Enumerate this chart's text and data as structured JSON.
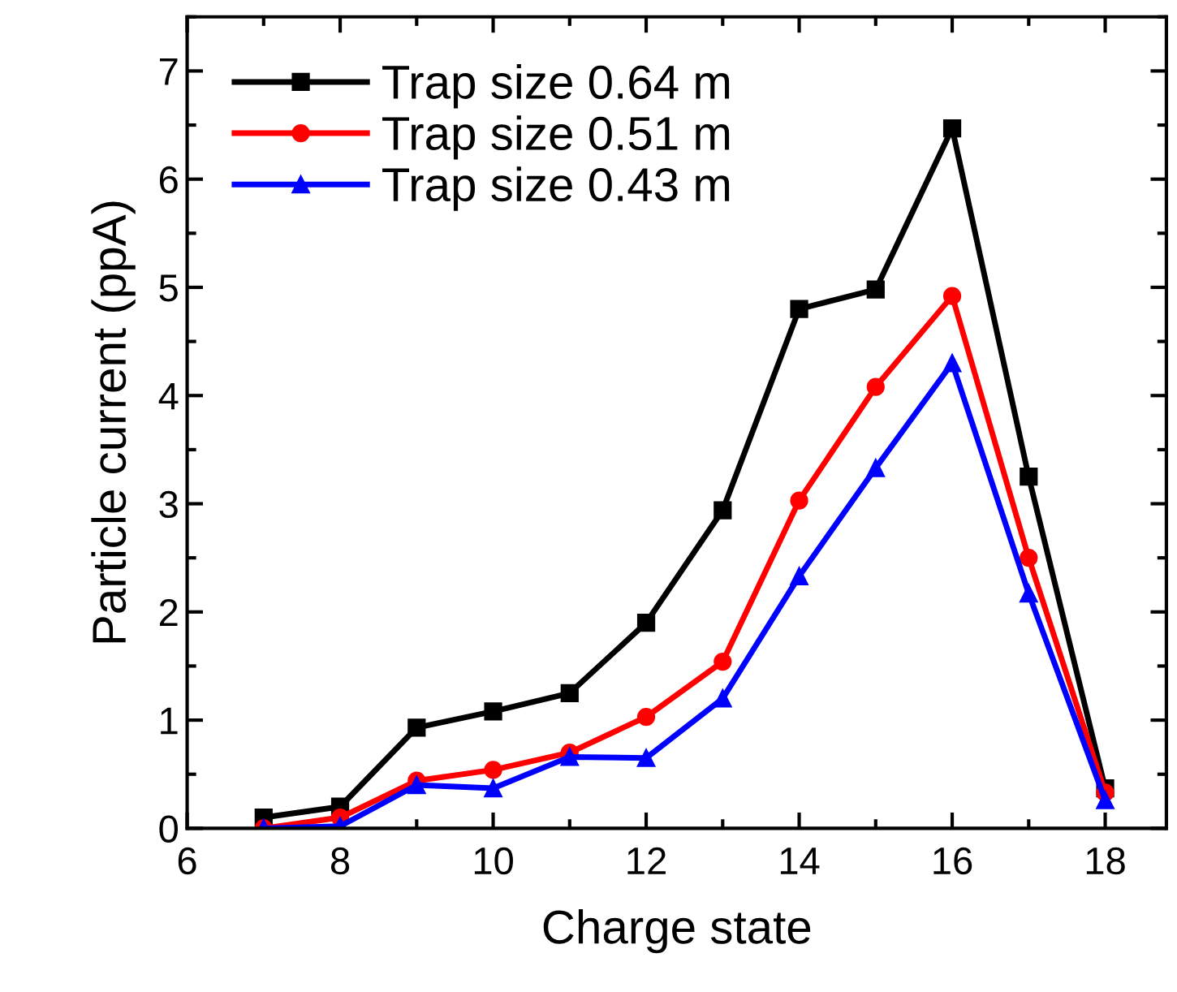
{
  "chart_data": {
    "type": "line",
    "xlabel": "Charge state",
    "ylabel": "Particle current (ppA)",
    "x": [
      7,
      8,
      9,
      10,
      11,
      12,
      13,
      14,
      15,
      16,
      17,
      18
    ],
    "series": [
      {
        "name": "Trap size 0.64 m",
        "color": "#000000",
        "marker": "square",
        "values": [
          0.1,
          0.2,
          0.93,
          1.08,
          1.25,
          1.9,
          2.94,
          4.8,
          4.98,
          6.47,
          3.25,
          0.37
        ]
      },
      {
        "name": "Trap size 0.51 m",
        "color": "#ff0000",
        "marker": "circle",
        "values": [
          0.0,
          0.1,
          0.44,
          0.54,
          0.7,
          1.03,
          1.54,
          3.03,
          4.08,
          4.92,
          2.5,
          0.33
        ]
      },
      {
        "name": "Trap size 0.43 m",
        "color": "#0000ff",
        "marker": "triangle",
        "values": [
          0.0,
          0.02,
          0.4,
          0.37,
          0.66,
          0.65,
          1.2,
          2.33,
          3.33,
          4.3,
          2.17,
          0.26
        ]
      }
    ],
    "xlim": [
      6,
      18.8
    ],
    "ylim": [
      0,
      7.5
    ],
    "xticks": [
      6,
      8,
      10,
      12,
      14,
      16,
      18
    ],
    "yticks": [
      0,
      1,
      2,
      3,
      4,
      5,
      6,
      7
    ],
    "grid": false,
    "legend": "top left",
    "line_style": "solid"
  }
}
